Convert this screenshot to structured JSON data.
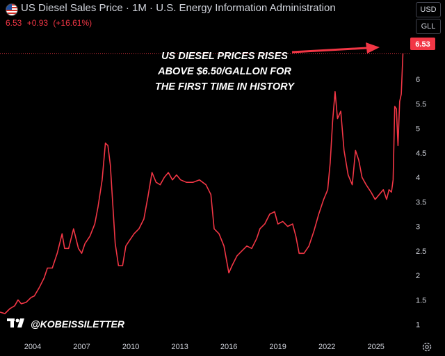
{
  "header": {
    "title": "US Diesel Sales Price · 1M · U.S. Energy Information Administration",
    "last": "6.53",
    "change": "+0.93",
    "change_pct": "(+16.61%)"
  },
  "controls": {
    "currency": "USD",
    "unit": "GLL"
  },
  "watermark": "@KOBEISSILETTER",
  "colors": {
    "line": "#f23645",
    "price_tag": "#f23645",
    "background": "#000000",
    "text": "#d1d4dc"
  },
  "chart_data": {
    "type": "line",
    "title": "US Diesel Sales Price",
    "annotation": [
      "US DIESEL PRICES RISES",
      "ABOVE $6.50/GALLON FOR",
      "THE FIRST TIME IN HISTORY"
    ],
    "last_value_label": "6.53",
    "x_tick_labels": [
      "2004",
      "2007",
      "2010",
      "2013",
      "2016",
      "2019",
      "2022",
      "2025"
    ],
    "y_tick_labels": [
      "1",
      "1.5",
      "2",
      "2.5",
      "3",
      "3.5",
      "4",
      "4.5",
      "5",
      "5.5",
      "6"
    ],
    "xlim": [
      2002.0,
      2026.8
    ],
    "ylim": [
      0.78,
      6.94
    ],
    "grid": false,
    "series": [
      {
        "points": [
          [
            2002.0,
            1.25
          ],
          [
            2002.3,
            1.22
          ],
          [
            2002.6,
            1.32
          ],
          [
            2002.9,
            1.38
          ],
          [
            2003.1,
            1.5
          ],
          [
            2003.3,
            1.42
          ],
          [
            2003.6,
            1.45
          ],
          [
            2003.9,
            1.55
          ],
          [
            2004.1,
            1.58
          ],
          [
            2004.4,
            1.75
          ],
          [
            2004.7,
            1.95
          ],
          [
            2004.9,
            2.15
          ],
          [
            2005.2,
            2.15
          ],
          [
            2005.5,
            2.45
          ],
          [
            2005.8,
            2.85
          ],
          [
            2005.95,
            2.55
          ],
          [
            2006.2,
            2.55
          ],
          [
            2006.5,
            2.95
          ],
          [
            2006.8,
            2.55
          ],
          [
            2007.0,
            2.45
          ],
          [
            2007.2,
            2.65
          ],
          [
            2007.5,
            2.8
          ],
          [
            2007.8,
            3.05
          ],
          [
            2008.0,
            3.4
          ],
          [
            2008.25,
            3.95
          ],
          [
            2008.45,
            4.7
          ],
          [
            2008.6,
            4.65
          ],
          [
            2008.75,
            4.25
          ],
          [
            2008.9,
            3.45
          ],
          [
            2009.05,
            2.65
          ],
          [
            2009.25,
            2.2
          ],
          [
            2009.5,
            2.2
          ],
          [
            2009.7,
            2.6
          ],
          [
            2009.9,
            2.7
          ],
          [
            2010.2,
            2.85
          ],
          [
            2010.5,
            2.95
          ],
          [
            2010.8,
            3.15
          ],
          [
            2011.05,
            3.6
          ],
          [
            2011.3,
            4.1
          ],
          [
            2011.55,
            3.9
          ],
          [
            2011.8,
            3.85
          ],
          [
            2012.05,
            4.0
          ],
          [
            2012.3,
            4.1
          ],
          [
            2012.55,
            3.95
          ],
          [
            2012.8,
            4.05
          ],
          [
            2013.05,
            3.95
          ],
          [
            2013.4,
            3.9
          ],
          [
            2013.8,
            3.9
          ],
          [
            2014.2,
            3.95
          ],
          [
            2014.6,
            3.85
          ],
          [
            2014.9,
            3.65
          ],
          [
            2015.1,
            2.95
          ],
          [
            2015.4,
            2.85
          ],
          [
            2015.7,
            2.6
          ],
          [
            2016.0,
            2.05
          ],
          [
            2016.2,
            2.2
          ],
          [
            2016.5,
            2.4
          ],
          [
            2016.8,
            2.5
          ],
          [
            2017.1,
            2.6
          ],
          [
            2017.4,
            2.55
          ],
          [
            2017.7,
            2.75
          ],
          [
            2017.9,
            2.95
          ],
          [
            2018.2,
            3.05
          ],
          [
            2018.5,
            3.25
          ],
          [
            2018.8,
            3.3
          ],
          [
            2019.0,
            3.05
          ],
          [
            2019.3,
            3.1
          ],
          [
            2019.6,
            3.0
          ],
          [
            2019.9,
            3.05
          ],
          [
            2020.1,
            2.8
          ],
          [
            2020.3,
            2.45
          ],
          [
            2020.6,
            2.45
          ],
          [
            2020.9,
            2.6
          ],
          [
            2021.2,
            2.9
          ],
          [
            2021.5,
            3.25
          ],
          [
            2021.8,
            3.55
          ],
          [
            2022.05,
            3.75
          ],
          [
            2022.2,
            4.3
          ],
          [
            2022.35,
            5.15
          ],
          [
            2022.5,
            5.75
          ],
          [
            2022.65,
            5.2
          ],
          [
            2022.85,
            5.35
          ],
          [
            2023.05,
            4.55
          ],
          [
            2023.3,
            4.05
          ],
          [
            2023.55,
            3.85
          ],
          [
            2023.75,
            4.55
          ],
          [
            2023.95,
            4.35
          ],
          [
            2024.15,
            4.0
          ],
          [
            2024.4,
            3.85
          ],
          [
            2024.7,
            3.7
          ],
          [
            2024.95,
            3.55
          ],
          [
            2025.2,
            3.65
          ],
          [
            2025.45,
            3.75
          ],
          [
            2025.65,
            3.55
          ],
          [
            2025.8,
            3.75
          ],
          [
            2025.95,
            3.7
          ],
          [
            2026.05,
            3.95
          ],
          [
            2026.15,
            5.45
          ],
          [
            2026.25,
            5.4
          ],
          [
            2026.35,
            4.65
          ],
          [
            2026.45,
            5.55
          ],
          [
            2026.55,
            5.7
          ],
          [
            2026.65,
            6.53
          ]
        ]
      }
    ]
  }
}
